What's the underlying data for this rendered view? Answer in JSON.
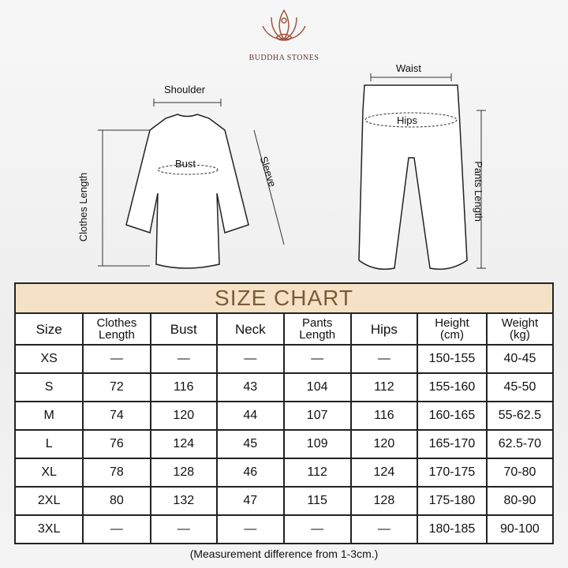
{
  "brand": {
    "name": "BUDDHA STONES",
    "logo_color": "#a0553f"
  },
  "diagram_labels": {
    "shoulder": "Shoulder",
    "bust": "Bust",
    "sleeve": "Sleeve",
    "clothes_length": "Clothes Length",
    "waist": "Waist",
    "hips": "Hips",
    "pants_length": "Pants Length"
  },
  "table": {
    "title": "SIZE CHART",
    "title_bg": "#f5e2c6",
    "columns": [
      [
        "Size",
        ""
      ],
      [
        "Clothes",
        "Length"
      ],
      [
        "Bust",
        ""
      ],
      [
        "Neck",
        ""
      ],
      [
        "Pants",
        "Length"
      ],
      [
        "Hips",
        ""
      ],
      [
        "Height",
        "(cm)"
      ],
      [
        "Weight",
        "(kg)"
      ]
    ],
    "rows": [
      [
        "XS",
        "—",
        "—",
        "—",
        "—",
        "—",
        "150-155",
        "40-45"
      ],
      [
        "S",
        "72",
        "116",
        "43",
        "104",
        "112",
        "155-160",
        "45-50"
      ],
      [
        "M",
        "74",
        "120",
        "44",
        "107",
        "116",
        "160-165",
        "55-62.5"
      ],
      [
        "L",
        "76",
        "124",
        "45",
        "109",
        "120",
        "165-170",
        "62.5-70"
      ],
      [
        "XL",
        "78",
        "128",
        "46",
        "112",
        "124",
        "170-175",
        "70-80"
      ],
      [
        "2XL",
        "80",
        "132",
        "47",
        "115",
        "128",
        "175-180",
        "80-90"
      ],
      [
        "3XL",
        "—",
        "—",
        "—",
        "—",
        "—",
        "180-185",
        "90-100"
      ]
    ]
  },
  "note": "(Measurement difference from 1-3cm.)"
}
